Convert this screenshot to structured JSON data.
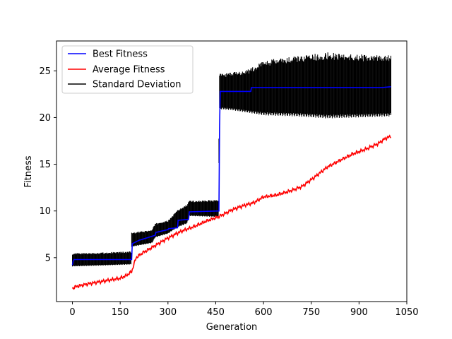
{
  "chart_data": {
    "type": "line",
    "title": "",
    "xlabel": "Generation",
    "ylabel": "Fitness",
    "xlim": [
      -50,
      1050
    ],
    "ylim": [
      0.3,
      28.2
    ],
    "xticks": [
      0,
      150,
      300,
      450,
      600,
      750,
      900,
      1050
    ],
    "yticks": [
      5,
      10,
      15,
      20,
      25
    ],
    "grid": false,
    "legend_position": "top-left",
    "series": [
      {
        "name": "Best Fitness",
        "color": "#0000ff",
        "x": [
          0,
          2,
          5,
          180,
          186,
          188,
          212,
          214,
          260,
          262,
          300,
          302,
          330,
          332,
          365,
          367,
          460,
          462,
          464,
          560,
          562,
          900,
          970,
          1000
        ],
        "y": [
          4.2,
          4.6,
          4.8,
          4.8,
          4.8,
          6.5,
          6.9,
          6.9,
          7.4,
          7.7,
          8.0,
          8.1,
          8.2,
          9.0,
          9.1,
          9.9,
          10.0,
          19.0,
          22.8,
          22.8,
          23.2,
          23.2,
          23.2,
          23.3
        ]
      },
      {
        "name": "Average Fitness",
        "color": "#ff0000",
        "x": [
          0,
          10,
          50,
          100,
          150,
          170,
          186,
          200,
          220,
          260,
          300,
          340,
          380,
          420,
          460,
          500,
          540,
          570,
          600,
          640,
          680,
          720,
          760,
          800,
          840,
          880,
          920,
          960,
          980,
          1000
        ],
        "y": [
          1.7,
          1.9,
          2.2,
          2.5,
          2.8,
          3.1,
          3.5,
          5.0,
          5.5,
          6.3,
          7.1,
          7.8,
          8.3,
          8.9,
          9.4,
          10.1,
          10.6,
          10.9,
          11.5,
          11.7,
          12.1,
          12.6,
          13.6,
          14.7,
          15.4,
          16.1,
          16.6,
          17.2,
          17.7,
          18.0
        ]
      },
      {
        "name": "Standard Deviation",
        "color": "#000000",
        "x": [
          0,
          100,
          185,
          186,
          250,
          260,
          300,
          330,
          360,
          366,
          458,
          462,
          500,
          560,
          600,
          700,
          800,
          900,
          1000
        ],
        "lower": [
          4.1,
          4.2,
          4.3,
          6.2,
          6.6,
          7.2,
          7.6,
          8.3,
          8.7,
          9.5,
          9.4,
          21.0,
          20.9,
          20.6,
          20.4,
          20.3,
          20.1,
          20.2,
          20.3
        ],
        "upper": [
          5.4,
          5.5,
          5.6,
          7.6,
          7.9,
          8.6,
          8.9,
          10.0,
          10.6,
          11.0,
          11.1,
          24.5,
          24.6,
          25.0,
          25.8,
          26.2,
          26.6,
          26.4,
          26.3
        ]
      }
    ]
  }
}
